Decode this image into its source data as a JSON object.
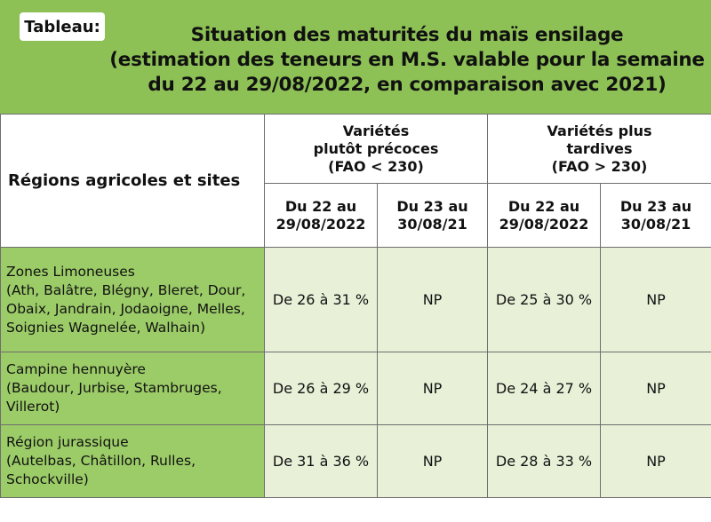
{
  "header": {
    "tag": "Tableau:",
    "title_line1": "Situation des maturités du maïs ensilage",
    "title_line2": "(estimation des teneurs en M.S. valable pour la semaine",
    "title_line3": "du 22 au 29/08/2022, en comparaison avec 2021)"
  },
  "table": {
    "region_header": "Régions agricoles et sites",
    "group1": "Variétés\nplutôt précoces\n(FAO < 230)",
    "group2": "Variétés plus\ntardives\n(FAO > 230)",
    "col1": "Du 22 au\n29/08/2022",
    "col2": "Du 23 au\n30/08/21",
    "col3": "Du 22 au\n29/08/2022",
    "col4": "Du 23 au\n30/08/21",
    "rows": [
      {
        "region": "Zones Limoneuses\n(Ath, Balâtre, Blégny, Bleret, Dour,\nObaix, Jandrain, Jodaoigne, Melles,\nSoignies Wagnelée, Walhain)",
        "c1": "De 26 à 31 %",
        "c2": "NP",
        "c3": "De 25 à 30 %",
        "c4": "NP"
      },
      {
        "region": "Campine hennuyère\n(Baudour, Jurbise, Stambruges,\nVillerot)",
        "c1": "De 26 à 29 %",
        "c2": "NP",
        "c3": "De 24 à 27 %",
        "c4": "NP"
      },
      {
        "region": "Région jurassique\n(Autelbas, Châtillon, Rulles,\nSchockville)",
        "c1": "De 31 à 36 %",
        "c2": "NP",
        "c3": "De 28 à 33 %",
        "c4": "NP"
      }
    ]
  },
  "colors": {
    "header_green": "#8dc155",
    "region_green": "#9ccc68",
    "cell_tint": "#e8f1d8",
    "border": "#6e6e6e"
  }
}
